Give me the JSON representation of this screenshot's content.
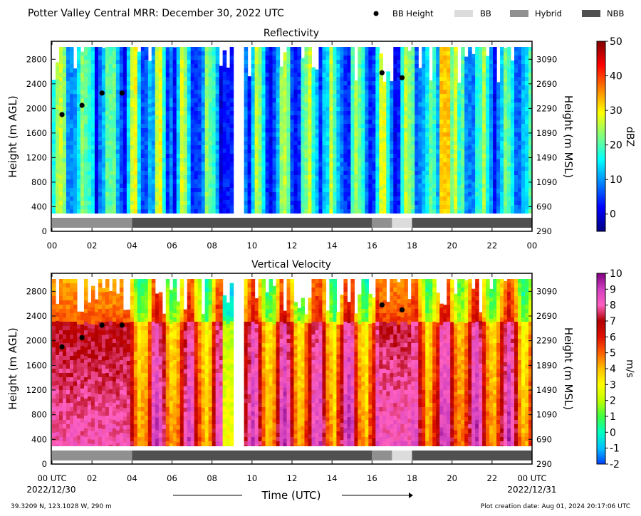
{
  "header": {
    "title": "Potter Valley Central MRR:  December 30, 2022 UTC",
    "legend": [
      {
        "label": "BB Height",
        "kind": "dot",
        "color": "#000000"
      },
      {
        "label": "BB",
        "kind": "swatch",
        "color": "#dcdcdc"
      },
      {
        "label": "Hybrid",
        "kind": "swatch",
        "color": "#909090"
      },
      {
        "label": "NBB",
        "kind": "swatch",
        "color": "#505050"
      }
    ]
  },
  "footer": {
    "coords": "39.3209 N, 123.1028 W, 290 m",
    "creation": "Plot creation date: Aug 01, 2024 20:17:06 UTC",
    "xlabel": "Time (UTC)",
    "date_left": "2022/12/30",
    "date_right": "2022/12/31"
  },
  "chart_data": [
    {
      "type": "heatmap",
      "title": "Reflectivity",
      "ylabel": "Height (m AGL)",
      "ylabel_right": "Height (m MSL)",
      "ylim": [
        0,
        3000
      ],
      "yticks": [
        0,
        400,
        800,
        1200,
        1600,
        2000,
        2400,
        2800
      ],
      "yticks_right": [
        "290",
        "690",
        "1090",
        "1490",
        "1890",
        "2290",
        "2690",
        "3090"
      ],
      "xlim": [
        0,
        24
      ],
      "xticks": [
        "00",
        "02",
        "04",
        "06",
        "08",
        "10",
        "12",
        "14",
        "16",
        "18",
        "20",
        "22",
        "00"
      ],
      "colorbar": {
        "label": "dBZ",
        "min": -5,
        "max": 50,
        "ticks": [
          0,
          10,
          20,
          30,
          40,
          50
        ],
        "colors": [
          "#00007f",
          "#0000ff",
          "#0080ff",
          "#00ffff",
          "#7fff7f",
          "#ffff00",
          "#ff8000",
          "#ff0000",
          "#7f0000"
        ]
      },
      "bb_height": [
        {
          "time": 0.5,
          "height": 1900
        },
        {
          "time": 1.5,
          "height": 2050
        },
        {
          "time": 2.5,
          "height": 2250
        },
        {
          "time": 3.5,
          "height": 2250
        },
        {
          "time": 16.5,
          "height": 2580
        },
        {
          "time": 17.5,
          "height": 2500
        }
      ],
      "bb_type": [
        {
          "start": 0,
          "end": 4,
          "type": "Hybrid"
        },
        {
          "start": 4,
          "end": 16,
          "type": "NBB"
        },
        {
          "start": 16,
          "end": 17,
          "type": "Hybrid"
        },
        {
          "start": 17,
          "end": 18,
          "type": "BB"
        },
        {
          "start": 18,
          "end": 24,
          "type": "NBB"
        }
      ]
    },
    {
      "type": "heatmap",
      "title": "Vertical Velocity",
      "ylabel": "Height (m AGL)",
      "ylabel_right": "Height (m MSL)",
      "ylim": [
        0,
        3000
      ],
      "yticks": [
        0,
        400,
        800,
        1200,
        1600,
        2000,
        2400,
        2800
      ],
      "yticks_right": [
        "290",
        "690",
        "1090",
        "1490",
        "1890",
        "2290",
        "2690",
        "3090"
      ],
      "xlim": [
        0,
        24
      ],
      "xticks": [
        "00 UTC",
        "02",
        "04",
        "06",
        "08",
        "10",
        "12",
        "14",
        "16",
        "18",
        "20",
        "22",
        "00 UTC"
      ],
      "colorbar": {
        "label": "m/s",
        "min": -2,
        "max": 10,
        "ticks": [
          -2,
          -1,
          0,
          1,
          2,
          3,
          4,
          5,
          6,
          7,
          8,
          9,
          10
        ],
        "colors": [
          "#0040ff",
          "#00c0ff",
          "#00ffc0",
          "#40ff40",
          "#c0ff00",
          "#ffff00",
          "#ffc000",
          "#ff6000",
          "#e01000",
          "#b00000",
          "#ff60c0",
          "#d040c0",
          "#800080"
        ]
      },
      "bb_height": [
        {
          "time": 0.5,
          "height": 1900
        },
        {
          "time": 1.5,
          "height": 2050
        },
        {
          "time": 2.5,
          "height": 2250
        },
        {
          "time": 3.5,
          "height": 2250
        },
        {
          "time": 16.5,
          "height": 2580
        },
        {
          "time": 17.5,
          "height": 2500
        }
      ],
      "bb_type": [
        {
          "start": 0,
          "end": 4,
          "type": "Hybrid"
        },
        {
          "start": 4,
          "end": 16,
          "type": "NBB"
        },
        {
          "start": 16,
          "end": 17,
          "type": "Hybrid"
        },
        {
          "start": 17,
          "end": 18,
          "type": "BB"
        },
        {
          "start": 18,
          "end": 24,
          "type": "NBB"
        }
      ]
    }
  ]
}
